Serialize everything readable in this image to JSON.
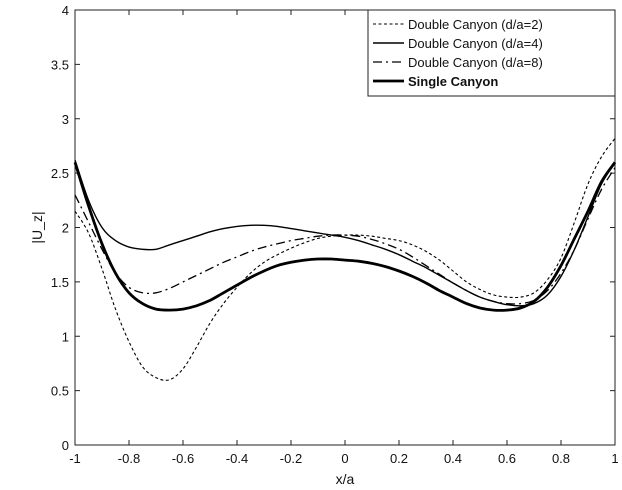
{
  "chart_data": {
    "type": "line",
    "title": "",
    "xlabel": "x/a",
    "ylabel": "|U_z|",
    "xlim": [
      -1,
      1
    ],
    "ylim": [
      0,
      4
    ],
    "xticks": [
      -1,
      -0.8,
      -0.6,
      -0.4,
      -0.2,
      0,
      0.2,
      0.4,
      0.6,
      0.8,
      1
    ],
    "xtick_labels": [
      "-1",
      "-0.8",
      "-0.6",
      "-0.4",
      "-0.2",
      "0",
      "0.2",
      "0.4",
      "0.6",
      "0.8",
      "1"
    ],
    "yticks": [
      0,
      0.5,
      1,
      1.5,
      2,
      2.5,
      3,
      3.5,
      4
    ],
    "ytick_labels": [
      "0",
      "0.5",
      "1",
      "1.5",
      "2",
      "2.5",
      "3",
      "3.5",
      "4"
    ],
    "grid": false,
    "legend_position": "top-right",
    "series": [
      {
        "name": "Double Canyon (d/a=2)",
        "style": "dotted",
        "x": [
          -1,
          -0.95,
          -0.9,
          -0.85,
          -0.8,
          -0.75,
          -0.7,
          -0.65,
          -0.6,
          -0.55,
          -0.5,
          -0.45,
          -0.4,
          -0.35,
          -0.3,
          -0.25,
          -0.2,
          -0.15,
          -0.1,
          -0.05,
          0,
          0.05,
          0.1,
          0.15,
          0.2,
          0.25,
          0.3,
          0.35,
          0.4,
          0.45,
          0.5,
          0.55,
          0.6,
          0.65,
          0.7,
          0.75,
          0.8,
          0.85,
          0.9,
          0.95,
          1
        ],
        "y": [
          2.15,
          1.95,
          1.62,
          1.25,
          0.95,
          0.72,
          0.62,
          0.6,
          0.7,
          0.9,
          1.12,
          1.3,
          1.45,
          1.58,
          1.68,
          1.75,
          1.81,
          1.86,
          1.9,
          1.92,
          1.93,
          1.93,
          1.92,
          1.9,
          1.88,
          1.84,
          1.78,
          1.7,
          1.6,
          1.5,
          1.43,
          1.38,
          1.36,
          1.36,
          1.4,
          1.52,
          1.72,
          2.05,
          2.4,
          2.65,
          2.82
        ]
      },
      {
        "name": "Double Canyon (d/a=4)",
        "style": "solid",
        "x": [
          -1,
          -0.95,
          -0.9,
          -0.85,
          -0.8,
          -0.75,
          -0.7,
          -0.65,
          -0.6,
          -0.55,
          -0.5,
          -0.45,
          -0.4,
          -0.35,
          -0.3,
          -0.25,
          -0.2,
          -0.15,
          -0.1,
          -0.05,
          0,
          0.05,
          0.1,
          0.15,
          0.2,
          0.25,
          0.3,
          0.35,
          0.4,
          0.45,
          0.5,
          0.55,
          0.6,
          0.65,
          0.7,
          0.75,
          0.8,
          0.85,
          0.9,
          0.95,
          1
        ],
        "y": [
          2.62,
          2.25,
          2.0,
          1.88,
          1.82,
          1.8,
          1.8,
          1.84,
          1.88,
          1.92,
          1.96,
          1.99,
          2.01,
          2.02,
          2.02,
          2.01,
          1.99,
          1.97,
          1.95,
          1.93,
          1.91,
          1.88,
          1.84,
          1.8,
          1.75,
          1.69,
          1.63,
          1.56,
          1.49,
          1.42,
          1.36,
          1.32,
          1.29,
          1.28,
          1.3,
          1.38,
          1.55,
          1.8,
          2.1,
          2.4,
          2.6
        ]
      },
      {
        "name": "Double Canyon (d/a=8)",
        "style": "dashdot",
        "x": [
          -1,
          -0.95,
          -0.9,
          -0.85,
          -0.8,
          -0.75,
          -0.7,
          -0.65,
          -0.6,
          -0.55,
          -0.5,
          -0.45,
          -0.4,
          -0.35,
          -0.3,
          -0.25,
          -0.2,
          -0.15,
          -0.1,
          -0.05,
          0,
          0.05,
          0.1,
          0.15,
          0.2,
          0.25,
          0.3,
          0.35,
          0.4,
          0.45,
          0.5,
          0.55,
          0.6,
          0.65,
          0.7,
          0.75,
          0.8,
          0.85,
          0.9,
          0.95,
          1
        ],
        "y": [
          2.3,
          2.05,
          1.8,
          1.58,
          1.45,
          1.4,
          1.4,
          1.44,
          1.5,
          1.56,
          1.62,
          1.68,
          1.73,
          1.78,
          1.82,
          1.85,
          1.88,
          1.9,
          1.92,
          1.93,
          1.93,
          1.92,
          1.89,
          1.85,
          1.8,
          1.73,
          1.65,
          1.57,
          1.49,
          1.42,
          1.36,
          1.32,
          1.3,
          1.3,
          1.33,
          1.42,
          1.58,
          1.8,
          2.08,
          2.35,
          2.55
        ]
      },
      {
        "name": "Single Canyon",
        "style": "bold",
        "x": [
          -1,
          -0.95,
          -0.9,
          -0.85,
          -0.8,
          -0.75,
          -0.7,
          -0.65,
          -0.6,
          -0.55,
          -0.5,
          -0.45,
          -0.4,
          -0.35,
          -0.3,
          -0.25,
          -0.2,
          -0.15,
          -0.1,
          -0.05,
          0,
          0.05,
          0.1,
          0.15,
          0.2,
          0.25,
          0.3,
          0.35,
          0.4,
          0.45,
          0.5,
          0.55,
          0.6,
          0.65,
          0.7,
          0.75,
          0.8,
          0.85,
          0.9,
          0.95,
          1
        ],
        "y": [
          2.6,
          2.2,
          1.85,
          1.58,
          1.4,
          1.3,
          1.25,
          1.24,
          1.25,
          1.28,
          1.33,
          1.4,
          1.47,
          1.54,
          1.6,
          1.65,
          1.68,
          1.7,
          1.71,
          1.71,
          1.7,
          1.69,
          1.67,
          1.64,
          1.6,
          1.55,
          1.49,
          1.42,
          1.36,
          1.3,
          1.26,
          1.24,
          1.24,
          1.26,
          1.32,
          1.45,
          1.65,
          1.9,
          2.15,
          2.42,
          2.6
        ]
      }
    ]
  }
}
